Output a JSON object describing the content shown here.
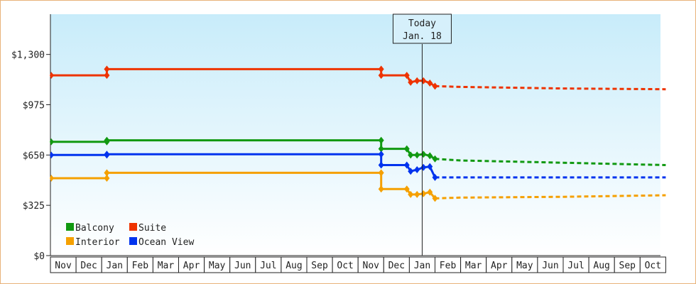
{
  "chart_data": {
    "type": "line",
    "title": "",
    "xlabel": "",
    "ylabel": "",
    "ylim": [
      0,
      1560
    ],
    "y_ticks": [
      "$0",
      "$325",
      "$650",
      "$975",
      "$1,300"
    ],
    "y_tick_values": [
      0,
      325,
      650,
      975,
      1300
    ],
    "x_tick_labels": [
      "Nov",
      "Dec",
      "Jan",
      "Feb",
      "Mar",
      "Apr",
      "May",
      "Jun",
      "Jul",
      "Aug",
      "Sep",
      "Oct",
      "Nov",
      "Dec",
      "Jan",
      "Feb",
      "Mar",
      "Apr",
      "May",
      "Jun",
      "Jul",
      "Aug",
      "Sep",
      "Oct"
    ],
    "today_marker": {
      "line1": "Today",
      "line2": "Jan. 18",
      "x": 14.5
    },
    "grid": false,
    "legend_position": "bottom-left",
    "series": [
      {
        "name": "Balcony",
        "color": "#119911",
        "history": [
          [
            0,
            735
          ],
          [
            2.2,
            735
          ],
          [
            2.2,
            745
          ],
          [
            12.9,
            745
          ],
          [
            12.9,
            690
          ],
          [
            13.9,
            690
          ],
          [
            14.05,
            650
          ],
          [
            14.3,
            650
          ],
          [
            14.55,
            655
          ],
          [
            14.8,
            645
          ],
          [
            15,
            625
          ]
        ],
        "forecast": [
          [
            15,
            625
          ],
          [
            16,
            615
          ],
          [
            20,
            600
          ],
          [
            24,
            585
          ]
        ]
      },
      {
        "name": "Suite",
        "color": "#ee3300",
        "history": [
          [
            0,
            1165
          ],
          [
            2.2,
            1165
          ],
          [
            2.2,
            1205
          ],
          [
            12.9,
            1205
          ],
          [
            12.9,
            1165
          ],
          [
            13.9,
            1165
          ],
          [
            14.05,
            1120
          ],
          [
            14.3,
            1130
          ],
          [
            14.55,
            1130
          ],
          [
            14.8,
            1115
          ],
          [
            15,
            1095
          ]
        ],
        "forecast": [
          [
            15,
            1095
          ],
          [
            16,
            1090
          ],
          [
            20,
            1080
          ],
          [
            24,
            1075
          ]
        ]
      },
      {
        "name": "Interior",
        "color": "#f5a000",
        "history": [
          [
            0,
            500
          ],
          [
            2.2,
            500
          ],
          [
            2.2,
            535
          ],
          [
            12.9,
            535
          ],
          [
            12.9,
            430
          ],
          [
            13.9,
            430
          ],
          [
            14.05,
            395
          ],
          [
            14.3,
            395
          ],
          [
            14.55,
            400
          ],
          [
            14.8,
            410
          ],
          [
            15,
            370
          ]
        ],
        "forecast": [
          [
            15,
            370
          ],
          [
            16,
            375
          ],
          [
            20,
            380
          ],
          [
            24,
            390
          ]
        ]
      },
      {
        "name": "Ocean View",
        "color": "#0033ee",
        "history": [
          [
            0,
            650
          ],
          [
            2.2,
            650
          ],
          [
            2.2,
            655
          ],
          [
            12.9,
            655
          ],
          [
            12.9,
            585
          ],
          [
            13.9,
            585
          ],
          [
            14.05,
            545
          ],
          [
            14.3,
            555
          ],
          [
            14.55,
            570
          ],
          [
            14.8,
            575
          ],
          [
            15,
            505
          ]
        ],
        "forecast": [
          [
            15,
            505
          ],
          [
            16,
            505
          ],
          [
            20,
            505
          ],
          [
            24,
            505
          ]
        ]
      }
    ],
    "legend": [
      {
        "label": "Balcony",
        "color": "#119911"
      },
      {
        "label": "Suite",
        "color": "#ee3300"
      },
      {
        "label": "Interior",
        "color": "#f5a000"
      },
      {
        "label": "Ocean View",
        "color": "#0033ee"
      }
    ]
  }
}
